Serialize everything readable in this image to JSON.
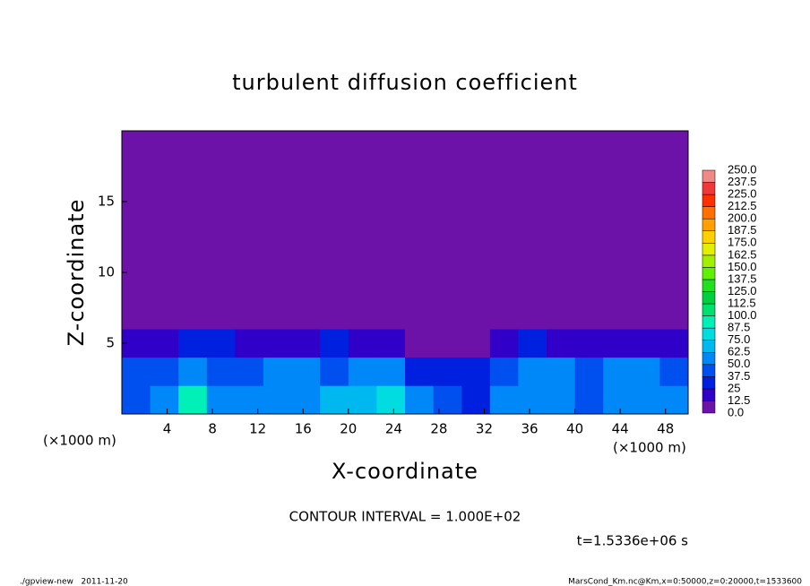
{
  "chart_data": {
    "type": "heatmap",
    "title": "turbulent diffusion coefficient",
    "xlabel": "X-coordinate",
    "ylabel": "Z-coordinate",
    "x_unit_left": "(×1000 m)",
    "x_unit_right": "(×1000 m)",
    "note": "CONTOUR INTERVAL = 1.000E+02",
    "time_label": "t=1.5336e+06 s",
    "footer_left": "./gpview-new   2011-11-20",
    "footer_right": "MarsCond_Km.nc@Km,x=0:50000,z=0:20000,t=1533600",
    "xlim": [
      0,
      50
    ],
    "ylim": [
      0,
      20
    ],
    "xticks": [
      4,
      8,
      12,
      16,
      20,
      24,
      28,
      32,
      36,
      40,
      44,
      48
    ],
    "yticks": [
      5,
      10,
      15
    ],
    "xbins": [
      0,
      2.5,
      5,
      7.5,
      10,
      12.5,
      15,
      17.5,
      20,
      22.5,
      25,
      27.5,
      30,
      32.5,
      35,
      37.5,
      40,
      42.5,
      45,
      47.5,
      50
    ],
    "zbins": [
      0,
      2,
      4,
      6,
      20
    ],
    "values": [
      [
        45,
        55,
        95,
        60,
        50,
        55,
        60,
        65,
        70,
        75,
        55,
        40,
        35,
        50,
        60,
        55,
        45,
        50,
        60,
        50
      ],
      [
        40,
        45,
        60,
        45,
        40,
        50,
        55,
        45,
        50,
        55,
        30,
        25,
        30,
        45,
        55,
        50,
        40,
        55,
        50,
        45
      ],
      [
        15,
        20,
        25,
        25,
        20,
        15,
        20,
        25,
        20,
        15,
        10,
        8,
        10,
        20,
        25,
        20,
        15,
        20,
        20,
        15
      ],
      [
        3,
        3,
        3,
        3,
        3,
        3,
        3,
        3,
        3,
        3,
        3,
        3,
        3,
        3,
        3,
        3,
        3,
        3,
        3,
        3
      ]
    ],
    "levels": [
      {
        "value": 0,
        "label": "0.0"
      },
      12.5,
      25,
      37.5,
      {
        "value": 50,
        "label": "50.0"
      },
      62.5,
      {
        "value": 75,
        "label": "75.0"
      },
      87.5,
      {
        "value": 100,
        "label": "100.0"
      },
      112.5,
      {
        "value": 125,
        "label": "125.0"
      },
      137.5,
      {
        "value": 150,
        "label": "150.0"
      },
      162.5,
      {
        "value": 175,
        "label": "175.0"
      },
      187.5,
      {
        "value": 200,
        "label": "200.0"
      },
      212.5,
      {
        "value": 225,
        "label": "225.0"
      },
      237.5,
      {
        "value": 250,
        "label": "250.0"
      }
    ],
    "colors": [
      "#6c12a8",
      "#3000c8",
      "#0020e0",
      "#0050f0",
      "#0088f8",
      "#00b8f0",
      "#00dce0",
      "#00f0b8",
      "#00e070",
      "#00d040",
      "#20e020",
      "#60f000",
      "#a0f000",
      "#e0f000",
      "#ffd000",
      "#ffa000",
      "#ff7000",
      "#ff3000",
      "#f03838",
      "#f08888"
    ]
  }
}
